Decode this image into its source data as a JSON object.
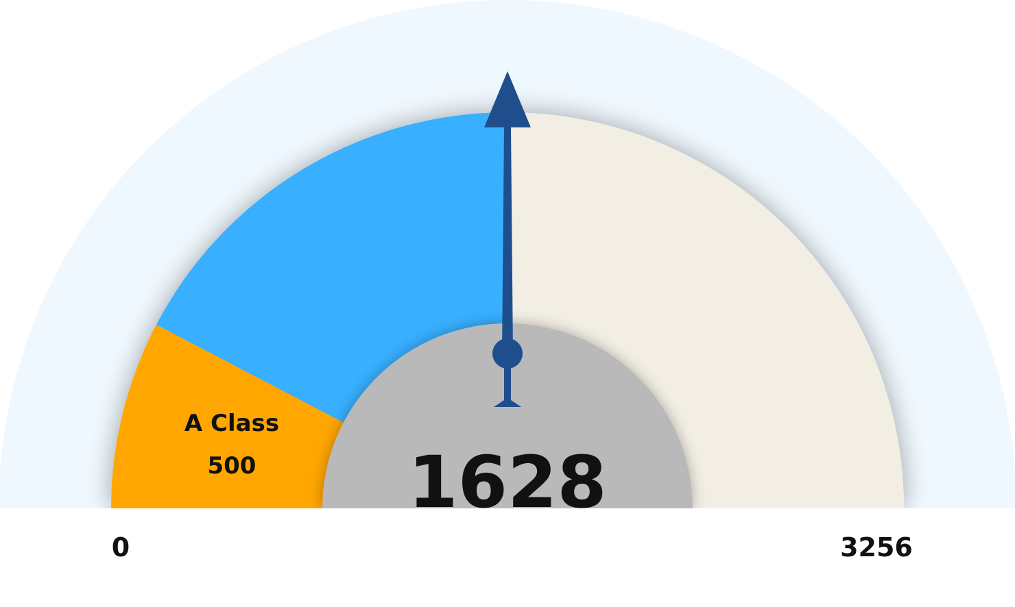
{
  "chart_data": {
    "type": "gauge",
    "min": 0,
    "max": 3256,
    "value": 1628,
    "bands": [
      {
        "name": "A Class",
        "from": 0,
        "to": 500,
        "value": 500,
        "color": "#FFA600"
      },
      {
        "from": 500,
        "to": 1628,
        "color": "#38AFFF"
      },
      {
        "from": 1628,
        "to": 3256,
        "color": "#F2EEE4"
      }
    ],
    "min_label": "0",
    "max_label": "3256",
    "value_label": "1628",
    "colors": {
      "halo": "#EFF8FE",
      "hub": "#B9B9B9",
      "needle": "#1F4E8C",
      "text": "#111111"
    }
  }
}
